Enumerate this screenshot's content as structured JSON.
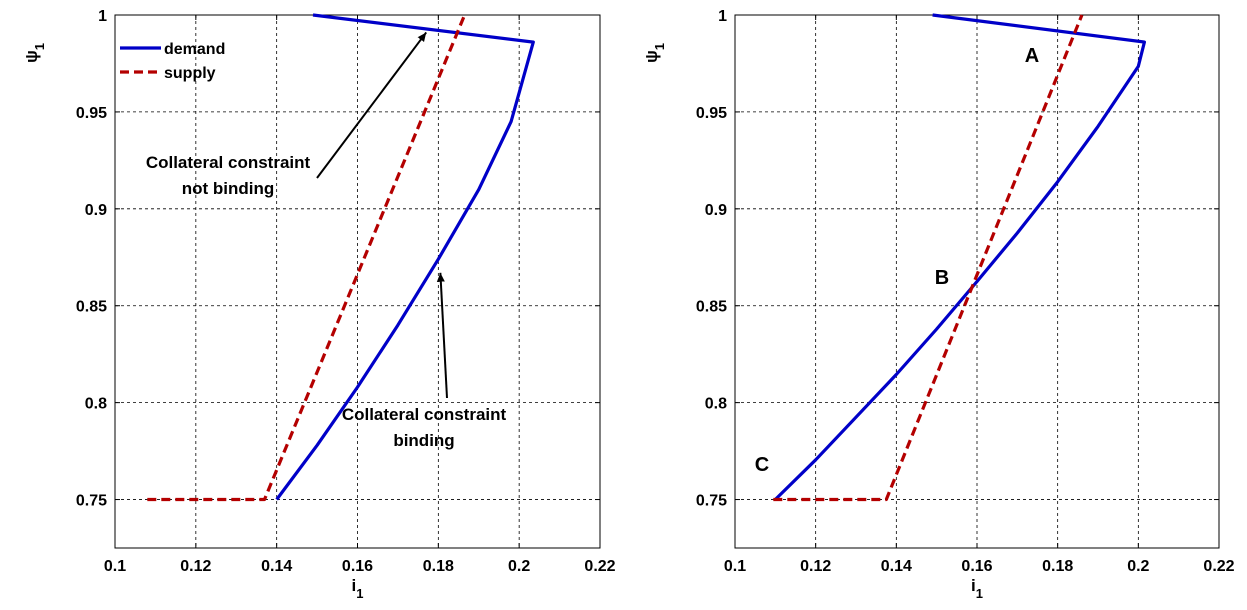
{
  "colors": {
    "demand": "#0000c8",
    "supply": "#b40000",
    "grid": "#000000",
    "arrow": "#000000"
  },
  "chart_data": [
    {
      "type": "line",
      "xlabel": "i",
      "xlabel_sub": "1",
      "ylabel": "ψ",
      "ylabel_sub": "1",
      "xlim": [
        0.1,
        0.22
      ],
      "ylim": [
        0.725,
        1.0
      ],
      "xticks": [
        0.1,
        0.12,
        0.14,
        0.16,
        0.18,
        0.2,
        0.22
      ],
      "xtick_labels": [
        "0.1",
        "0.12",
        "0.14",
        "0.16",
        "0.18",
        "0.2",
        "0.22"
      ],
      "yticks": [
        0.75,
        0.8,
        0.85,
        0.9,
        0.95,
        1.0
      ],
      "ytick_labels": [
        "0.75",
        "0.8",
        "0.85",
        "0.9",
        "0.95",
        "1"
      ],
      "grid": true,
      "legend": "top-left",
      "series": [
        {
          "name": "demand",
          "style": "solid",
          "x": [
            0.14,
            0.15,
            0.16,
            0.17,
            0.18,
            0.19,
            0.198,
            0.2035,
            0.149
          ],
          "y": [
            0.75,
            0.778,
            0.808,
            0.84,
            0.874,
            0.91,
            0.945,
            0.986,
            1.0
          ]
        },
        {
          "name": "supply",
          "style": "dashed",
          "x": [
            0.108,
            0.137,
            0.1865
          ],
          "y": [
            0.75,
            0.75,
            1.0
          ]
        }
      ],
      "annotations": [
        {
          "lines": [
            "Collateral constraint",
            "not binding"
          ],
          "arrow_to": [
            0.177,
            0.991
          ]
        },
        {
          "lines": [
            "Collateral constraint",
            "binding"
          ],
          "arrow_to": [
            0.1805,
            0.867
          ]
        }
      ]
    },
    {
      "type": "line",
      "xlabel": "i",
      "xlabel_sub": "1",
      "ylabel": "ψ",
      "ylabel_sub": "1",
      "xlim": [
        0.1,
        0.22
      ],
      "ylim": [
        0.725,
        1.0
      ],
      "xticks": [
        0.1,
        0.12,
        0.14,
        0.16,
        0.18,
        0.2,
        0.22
      ],
      "xtick_labels": [
        "0.1",
        "0.12",
        "0.14",
        "0.16",
        "0.18",
        "0.2",
        "0.22"
      ],
      "yticks": [
        0.75,
        0.8,
        0.85,
        0.9,
        0.95,
        1.0
      ],
      "ytick_labels": [
        "0.75",
        "0.8",
        "0.85",
        "0.9",
        "0.95",
        "1"
      ],
      "grid": true,
      "series": [
        {
          "style": "solid",
          "x": [
            0.11,
            0.12,
            0.13,
            0.14,
            0.15,
            0.16,
            0.17,
            0.18,
            0.19,
            0.2,
            0.2015,
            0.149
          ],
          "y": [
            0.75,
            0.7705,
            0.7925,
            0.8145,
            0.838,
            0.8625,
            0.8875,
            0.914,
            0.9425,
            0.9735,
            0.986,
            1.0
          ]
        },
        {
          "style": "dashed",
          "x": [
            0.1095,
            0.1375,
            0.186
          ],
          "y": [
            0.75,
            0.75,
            1.0
          ]
        }
      ],
      "point_labels": [
        "A",
        "B",
        "C"
      ]
    }
  ]
}
